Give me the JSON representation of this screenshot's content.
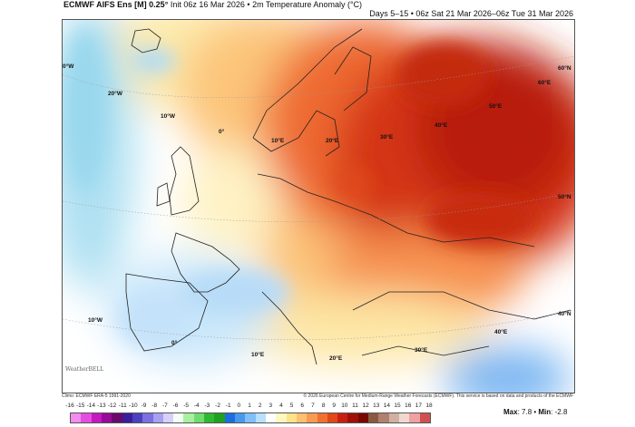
{
  "header": {
    "model": "ECMWF AIFS Ens [M] 0.25",
    "degree_mark": "°",
    "init": "Init 06z 16 Mar 2026",
    "separator": "•",
    "variable": "2m Temperature Anomaly (°C)",
    "valid": "Days 5–15 • 06z Sat 21 Mar 2026–06z Tue 31 Mar 2026"
  },
  "map": {
    "region": "Europe",
    "grid_labels": [
      "0°W",
      "20°W",
      "10°W",
      "0°",
      "10°E",
      "20°E",
      "30°E",
      "40°E",
      "50°E",
      "60°E",
      "60°N",
      "50°N",
      "40°N",
      "10°W",
      "0°",
      "10°E",
      "20°E",
      "30°E",
      "40°E"
    ],
    "watermark": "WeatherBELL"
  },
  "footer": {
    "climo": "Climo: ECMWF ERA-5 1991-2020",
    "copyright": "© 2026 European Centre for Medium-Range Weather Forecasts (ECMWF). This service is based on data and products of the ECMWF"
  },
  "colorbar": {
    "ticks": [
      "-16",
      "-15",
      "-14",
      "-13",
      "-12",
      "-11",
      "-10",
      "-9",
      "-8",
      "-7",
      "-6",
      "-5",
      "-4",
      "-3",
      "-2",
      "-1",
      "0",
      "1",
      "2",
      "3",
      "4",
      "5",
      "6",
      "7",
      "8",
      "9",
      "10",
      "11",
      "12",
      "13",
      "14",
      "15",
      "16",
      "17",
      "18"
    ],
    "colors": [
      "#f28cf0",
      "#e34ee0",
      "#c518c0",
      "#980a98",
      "#6a0a6a",
      "#3a1e9a",
      "#4a40c0",
      "#7a70e0",
      "#a8a0f0",
      "#d6d0fb",
      "#f4fff4",
      "#a8f0a0",
      "#70dc70",
      "#30b830",
      "#20a020",
      "#1c6ee0",
      "#4a98ee",
      "#80c0f8",
      "#b8e0ff",
      "#ffffff",
      "#fff8c0",
      "#fde28a",
      "#fbc070",
      "#f89a52",
      "#f07030",
      "#e04818",
      "#c82010",
      "#a01008",
      "#780800",
      "#8a5a40",
      "#b08070",
      "#d0b0a0",
      "#f0d8d0",
      "#f0a0a0",
      "#d05050"
    ],
    "max_label": "Max",
    "max_value": "7.8",
    "min_label": "Min",
    "min_value": "-2.8"
  }
}
